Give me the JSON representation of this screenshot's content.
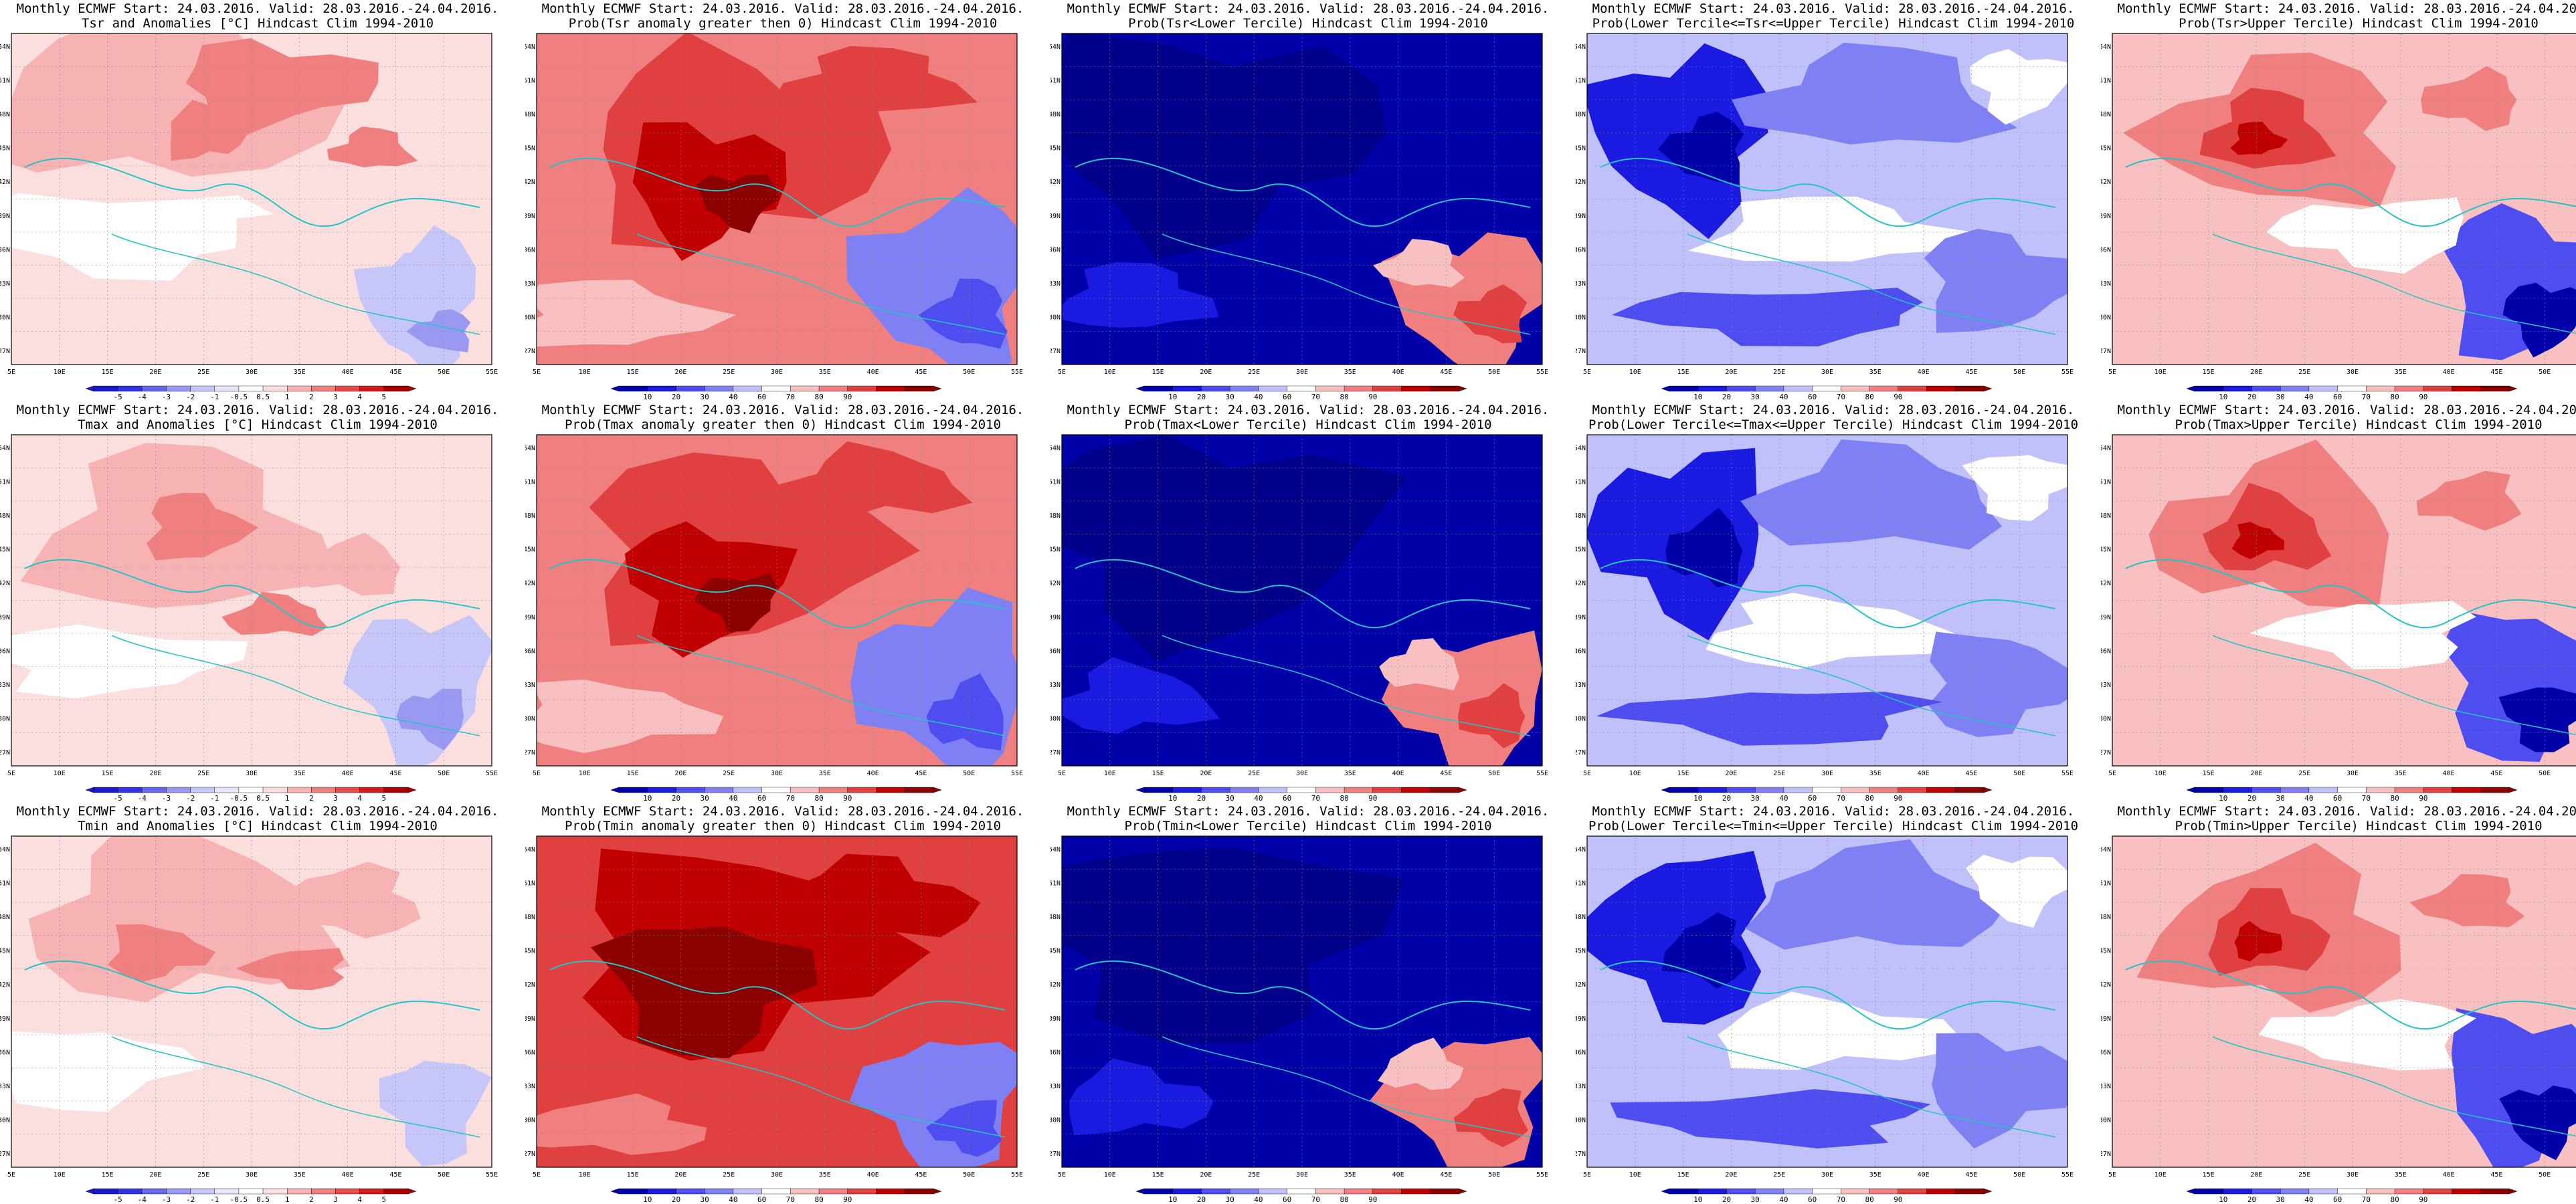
{
  "common": {
    "title_line1": "Monthly ECMWF Start: 24.03.2016. Valid: 28.03.2016.-24.04.2016.",
    "lon_ticks": [
      "5E",
      "10E",
      "15E",
      "20E",
      "25E",
      "30E",
      "35E",
      "40E",
      "45E",
      "50E",
      "55E"
    ],
    "lat_ticks": [
      "54N",
      "51N",
      "48N",
      "45N",
      "42N",
      "39N",
      "36N",
      "33N",
      "30N",
      "27N"
    ]
  },
  "colorbars": {
    "anomaly": {
      "labels": [
        "-5",
        "-4",
        "-3",
        "-2",
        "-1",
        "-0.5",
        "0.5",
        "1",
        "2",
        "3",
        "4",
        "5"
      ],
      "colors": [
        "#1a1acc",
        "#3333e6",
        "#6666ee",
        "#9999f2",
        "#c6c6f8",
        "#e6e6fb",
        "#ffffff",
        "#fbdede",
        "#f7b3b3",
        "#f08080",
        "#e64c4c",
        "#d41a1a",
        "#a80000"
      ]
    },
    "probability": {
      "labels": [
        "10",
        "20",
        "30",
        "40",
        "60",
        "70",
        "80",
        "90"
      ],
      "colors": [
        "#0000a8",
        "#1a1ae0",
        "#4d4df0",
        "#8080f5",
        "#c0c0fa",
        "#ffffff",
        "#f8c0c0",
        "#f08080",
        "#e04040",
        "#c00000",
        "#8b0000"
      ]
    }
  },
  "panels": [
    {
      "title2": "Tsr and Anomalies [°C] Hindcast Clim 1994-2010",
      "kind": "anomaly",
      "pattern": "tsr-anom"
    },
    {
      "title2": "Prob(Tsr anomaly greater then 0) Hindcast Clim 1994-2010",
      "kind": "probability",
      "pattern": "warm"
    },
    {
      "title2": "Prob(Tsr<Lower Tercile) Hindcast Clim 1994-2010",
      "kind": "probability",
      "pattern": "cold-prob"
    },
    {
      "title2": "Prob(Lower Tercile<=Tsr<=Upper Tercile) Hindcast Clim 1994-2010",
      "kind": "probability",
      "pattern": "mid-prob"
    },
    {
      "title2": "Prob(Tsr>Upper Tercile) Hindcast Clim 1994-2010",
      "kind": "probability",
      "pattern": "upper-prob"
    },
    {
      "title2": "Tmax and Anomalies [°C] Hindcast Clim 1994-2010",
      "kind": "anomaly",
      "pattern": "tmax-anom"
    },
    {
      "title2": "Prob(Tmax anomaly greater then 0) Hindcast Clim 1994-2010",
      "kind": "probability",
      "pattern": "warm"
    },
    {
      "title2": "Prob(Tmax<Lower Tercile) Hindcast Clim 1994-2010",
      "kind": "probability",
      "pattern": "cold-prob"
    },
    {
      "title2": "Prob(Lower Tercile<=Tmax<=Upper Tercile) Hindcast Clim 1994-2010",
      "kind": "probability",
      "pattern": "mid-prob"
    },
    {
      "title2": "Prob(Tmax>Upper Tercile) Hindcast Clim 1994-2010",
      "kind": "probability",
      "pattern": "upper-prob"
    },
    {
      "title2": "Tmin and Anomalies [°C] Hindcast Clim 1994-2010",
      "kind": "anomaly",
      "pattern": "tmin-anom"
    },
    {
      "title2": "Prob(Tmin anomaly greater then 0) Hindcast Clim 1994-2010",
      "kind": "probability",
      "pattern": "warm-strong"
    },
    {
      "title2": "Prob(Tmin<Lower Tercile) Hindcast Clim 1994-2010",
      "kind": "probability",
      "pattern": "cold-prob"
    },
    {
      "title2": "Prob(Lower Tercile<=Tmin<=Upper Tercile) Hindcast Clim 1994-2010",
      "kind": "probability",
      "pattern": "mid-prob"
    },
    {
      "title2": "Prob(Tmin>Upper Tercile) Hindcast Clim 1994-2010",
      "kind": "probability",
      "pattern": "upper-prob"
    }
  ]
}
